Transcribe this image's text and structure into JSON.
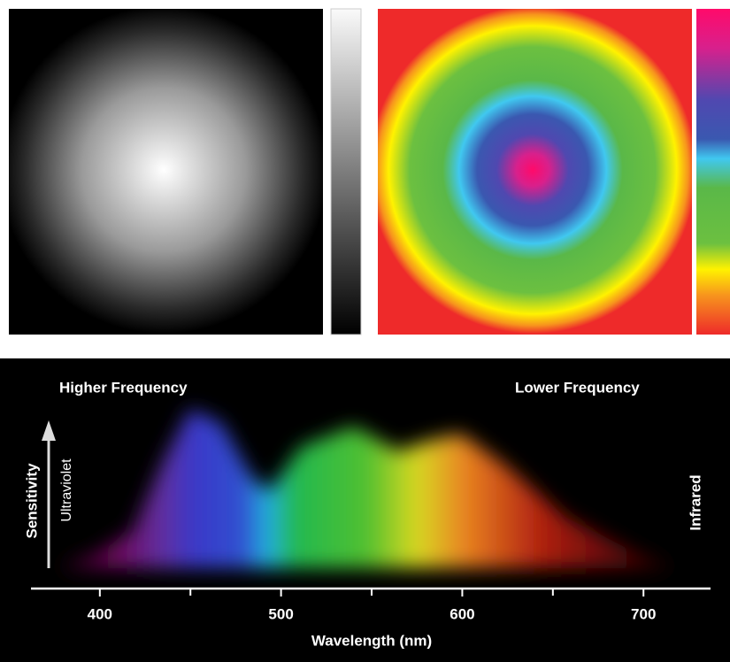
{
  "chart_data": {
    "type": "spectrum",
    "xlabel": "Wavelength (nm)",
    "ylabel": "Sensitivity",
    "xlim": [
      362,
      737
    ],
    "xticks": [
      400,
      500,
      600,
      700
    ],
    "xminor_ticks": [
      450,
      550,
      650
    ],
    "annotations": {
      "left_top": "Higher Frequency",
      "right_top": "Lower Frequency",
      "left_side": "Ultraviolet",
      "right_side": "Infrared"
    }
  }
}
